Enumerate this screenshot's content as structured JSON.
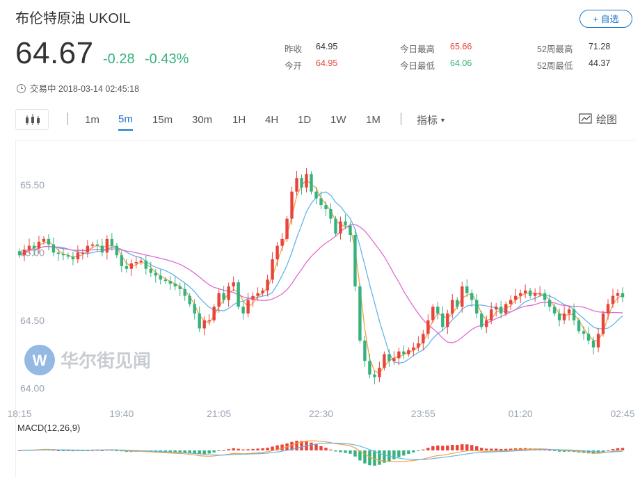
{
  "header": {
    "title": "布伦特原油  UKOIL",
    "follow_label": "+ 自选",
    "price": "64.67",
    "change": "-0.28",
    "change_pct": "-0.43%",
    "status_text": "交易中 2018-03-14 02:45:18"
  },
  "stats": {
    "prev_close_label": "昨收",
    "prev_close": "64.95",
    "open_label": "今开",
    "open": "64.95",
    "high_label": "今日最高",
    "high": "65.66",
    "low_label": "今日最低",
    "low": "64.06",
    "w52_high_label": "52周最高",
    "w52_high": "71.28",
    "w52_low_label": "52周最低",
    "w52_low": "44.37"
  },
  "toolbar": {
    "periods": [
      "1m",
      "5m",
      "15m",
      "30m",
      "1H",
      "4H",
      "1D",
      "1W",
      "1M"
    ],
    "active_period": "5m",
    "indicator_label": "指标",
    "draw_label": "绘图"
  },
  "colors": {
    "up": "#e8443b",
    "down": "#35b27d",
    "accent": "#1a73c8",
    "ma_short": "#f5a040",
    "ma_mid": "#64b4e6",
    "ma_long": "#e06ad0"
  },
  "watermark": "华尔街见闻",
  "chart_data": {
    "type": "candlestick",
    "y_ticks": [
      "65.50",
      "65.00",
      "64.50",
      "64.00"
    ],
    "ylim": [
      63.95,
      65.72
    ],
    "x_ticks": [
      "18:15",
      "19:40",
      "21:05",
      "22:30",
      "23:55",
      "01:20",
      "02:45"
    ],
    "closes": [
      64.98,
      65.02,
      65.05,
      65.03,
      65.08,
      65.1,
      65.06,
      65.0,
      64.99,
      64.98,
      64.97,
      64.95,
      65.0,
      65.0,
      65.05,
      65.06,
      65.05,
      65.0,
      65.1,
      65.05,
      64.98,
      64.9,
      64.88,
      64.92,
      64.93,
      64.94,
      64.88,
      64.85,
      64.83,
      64.8,
      64.79,
      64.77,
      64.75,
      64.73,
      64.68,
      64.62,
      64.55,
      64.44,
      64.5,
      64.5,
      64.6,
      64.7,
      64.65,
      64.75,
      64.78,
      64.6,
      64.55,
      64.65,
      64.68,
      64.7,
      64.72,
      64.8,
      64.95,
      65.05,
      65.1,
      65.25,
      65.45,
      65.55,
      65.48,
      65.58,
      65.45,
      65.4,
      65.35,
      65.32,
      65.25,
      65.14,
      65.23,
      65.2,
      65.13,
      64.75,
      64.35,
      64.2,
      64.1,
      64.08,
      64.15,
      64.25,
      64.2,
      64.22,
      64.27,
      64.25,
      64.28,
      64.3,
      64.33,
      64.4,
      64.5,
      64.6,
      64.55,
      64.45,
      64.55,
      64.65,
      64.6,
      64.75,
      64.7,
      64.65,
      64.55,
      64.45,
      64.5,
      64.58,
      64.6,
      64.55,
      64.62,
      64.65,
      64.68,
      64.7,
      64.72,
      64.68,
      64.7,
      64.7,
      64.65,
      64.6,
      64.55,
      64.5,
      64.55,
      64.58,
      64.5,
      64.42,
      64.4,
      64.35,
      64.3,
      64.4,
      64.55,
      64.62,
      64.68,
      64.7,
      64.67
    ],
    "macd_label": "MACD(12,26,9)"
  }
}
